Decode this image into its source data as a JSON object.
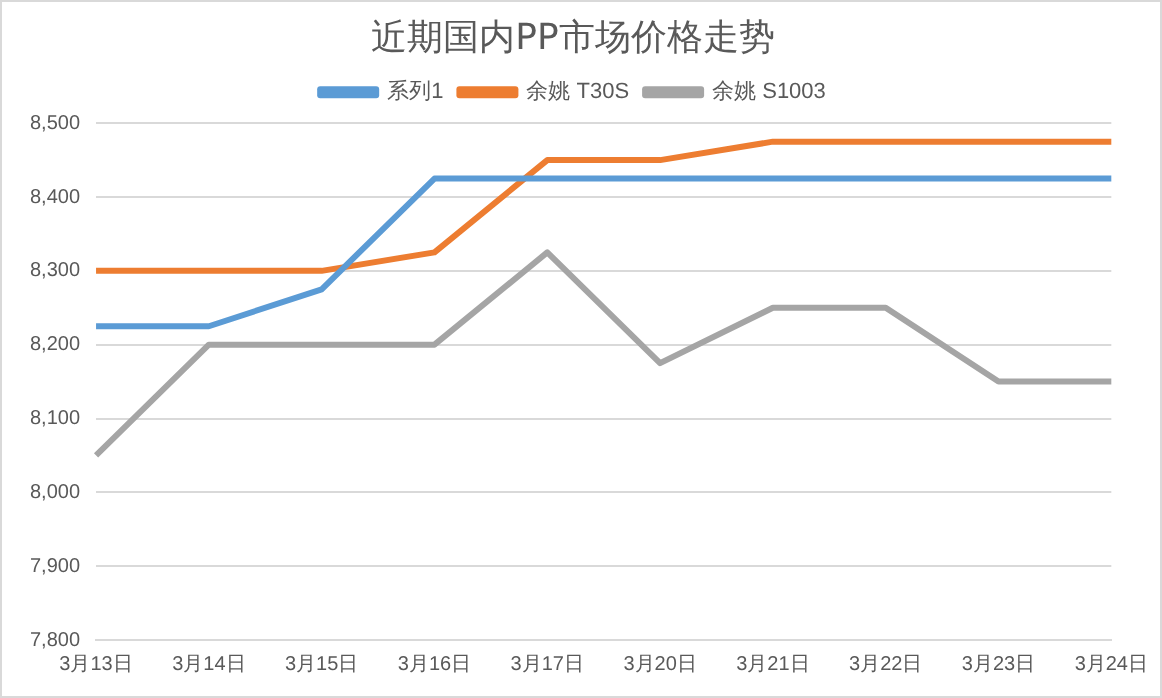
{
  "chart_data": {
    "type": "line",
    "title": "近期国内PP市场价格走势",
    "categories": [
      "3月13日",
      "3月14日",
      "3月15日",
      "3月16日",
      "3月17日",
      "3月20日",
      "3月21日",
      "3月22日",
      "3月23日",
      "3月24日"
    ],
    "series": [
      {
        "name": "系列1",
        "color": "#5b9bd5",
        "values": [
          8225,
          8225,
          8275,
          8425,
          8425,
          8425,
          8425,
          8425,
          8425,
          8425
        ]
      },
      {
        "name": "余姚 T30S",
        "color": "#ed7d31",
        "values": [
          8300,
          8300,
          8300,
          8325,
          8450,
          8450,
          8475,
          8475,
          8475,
          8475
        ]
      },
      {
        "name": "余姚 S1003",
        "color": "#a5a5a5",
        "values": [
          8050,
          8200,
          8200,
          8200,
          8325,
          8175,
          8250,
          8250,
          8150,
          8150
        ]
      }
    ],
    "ylim": [
      7800,
      8500
    ],
    "yticks": [
      {
        "value": 7800,
        "label": "7,800"
      },
      {
        "value": 7900,
        "label": "7,900"
      },
      {
        "value": 8000,
        "label": "8,000"
      },
      {
        "value": 8100,
        "label": "8,100"
      },
      {
        "value": 8200,
        "label": "8,200"
      },
      {
        "value": 8300,
        "label": "8,300"
      },
      {
        "value": 8400,
        "label": "8,400"
      },
      {
        "value": 8500,
        "label": "8,500"
      }
    ],
    "grid": "y",
    "legend": "top",
    "marker": "none",
    "line_style": "solid"
  }
}
